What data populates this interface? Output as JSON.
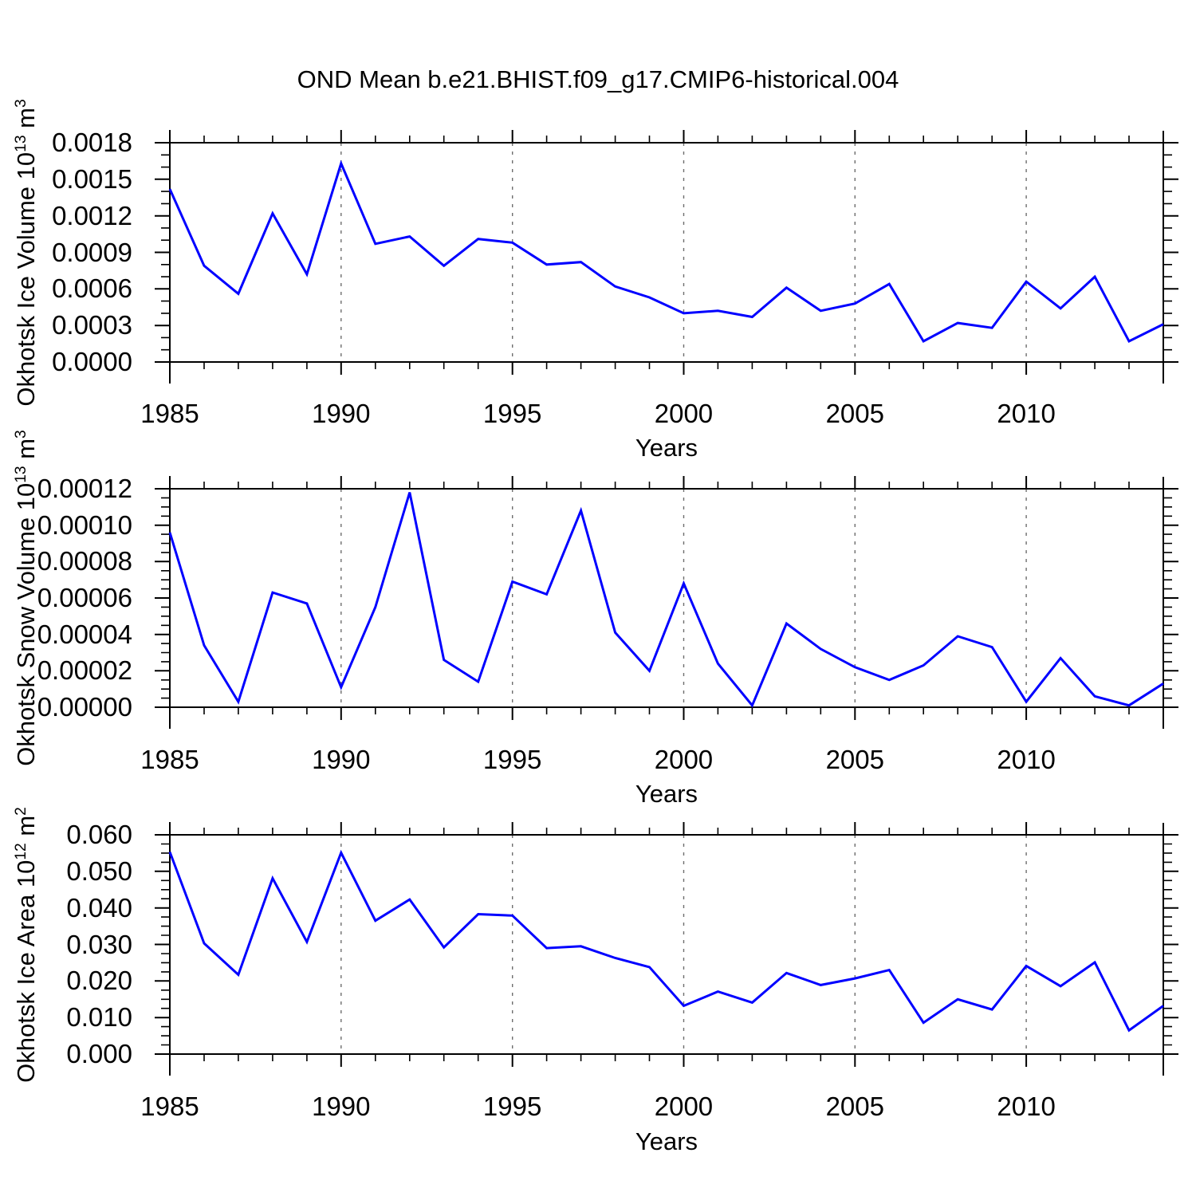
{
  "title": "OND Mean b.e21.BHIST.f09_g17.CMIP6-historical.004",
  "colors": {
    "line": "#0000ff",
    "grid": "#6e6e6e",
    "axis": "#000000",
    "text": "#000000",
    "background": "#ffffff"
  },
  "chart_data": [
    {
      "type": "line",
      "name": "okhotsk-ice-volume",
      "xlabel": "Years",
      "ylabel_segments": [
        {
          "text": "Okhotsk Ice Volume 10",
          "sup": false
        },
        {
          "text": "13",
          "sup": true
        },
        {
          "text": " m",
          "sup": false
        },
        {
          "text": "3",
          "sup": true
        }
      ],
      "xlim": [
        1985,
        2014
      ],
      "ylim": [
        0,
        0.0018
      ],
      "x": [
        1985,
        1986,
        1987,
        1988,
        1989,
        1990,
        1991,
        1992,
        1993,
        1994,
        1995,
        1996,
        1997,
        1998,
        1999,
        2000,
        2001,
        2002,
        2003,
        2004,
        2005,
        2006,
        2007,
        2008,
        2009,
        2010,
        2011,
        2012,
        2013,
        2014
      ],
      "values": [
        0.00142,
        0.00079,
        0.00056,
        0.00122,
        0.00072,
        0.00163,
        0.00097,
        0.00103,
        0.00079,
        0.00101,
        0.00098,
        0.0008,
        0.00082,
        0.00062,
        0.00053,
        0.0004,
        0.00042,
        0.00037,
        0.00061,
        0.00042,
        0.00048,
        0.00064,
        0.00017,
        0.00032,
        0.00028,
        0.00066,
        0.00044,
        0.0007,
        0.00017,
        0.00031
      ],
      "ytick_values": [
        0,
        0.0003,
        0.0006,
        0.0009,
        0.0012,
        0.0015,
        0.0018
      ],
      "ytick_labels": [
        "0.0000",
        "0.0003",
        "0.0006",
        "0.0009",
        "0.0012",
        "0.0015",
        "0.0018"
      ],
      "y_minor_step": 0.0001,
      "xtick_major": [
        1985,
        1990,
        1995,
        2000,
        2005,
        2010
      ],
      "xtick_labels": [
        "1985",
        "1990",
        "1995",
        "2000",
        "2005",
        "2010"
      ],
      "x_minor_step": 1,
      "grid_years": [
        1990,
        1995,
        2000,
        2005,
        2010
      ],
      "grid_style": "dashed"
    },
    {
      "type": "line",
      "name": "okhotsk-snow-volume",
      "xlabel": "Years",
      "ylabel_segments": [
        {
          "text": "Okhotsk Snow Volume 10",
          "sup": false
        },
        {
          "text": "13",
          "sup": true
        },
        {
          "text": " m",
          "sup": false
        },
        {
          "text": "3",
          "sup": true
        }
      ],
      "xlim": [
        1985,
        2014
      ],
      "ylim": [
        0,
        0.00012
      ],
      "x": [
        1985,
        1986,
        1987,
        1988,
        1989,
        1990,
        1991,
        1992,
        1993,
        1994,
        1995,
        1996,
        1997,
        1998,
        1999,
        2000,
        2001,
        2002,
        2003,
        2004,
        2005,
        2006,
        2007,
        2008,
        2009,
        2010,
        2011,
        2012,
        2013,
        2014
      ],
      "values": [
        9.6e-05,
        3.4e-05,
        3e-06,
        6.3e-05,
        5.7e-05,
        1.1e-05,
        5.5e-05,
        0.000118,
        2.6e-05,
        1.4e-05,
        6.9e-05,
        6.2e-05,
        0.000108,
        4.1e-05,
        2e-05,
        6.8e-05,
        2.4e-05,
        1e-06,
        4.6e-05,
        3.2e-05,
        2.2e-05,
        1.5e-05,
        2.3e-05,
        3.9e-05,
        3.3e-05,
        3e-06,
        2.7e-05,
        6e-06,
        1e-06,
        1.3e-05
      ],
      "ytick_values": [
        0,
        2e-05,
        4e-05,
        6e-05,
        8e-05,
        0.0001,
        0.00012
      ],
      "ytick_labels": [
        "0.00000",
        "0.00002",
        "0.00004",
        "0.00006",
        "0.00008",
        "0.00010",
        "0.00012"
      ],
      "y_minor_step": 5e-06,
      "xtick_major": [
        1985,
        1990,
        1995,
        2000,
        2005,
        2010
      ],
      "xtick_labels": [
        "1985",
        "1990",
        "1995",
        "2000",
        "2005",
        "2010"
      ],
      "x_minor_step": 1,
      "grid_years": [
        1990,
        1995,
        2000,
        2005,
        2010
      ],
      "grid_style": "dashed"
    },
    {
      "type": "line",
      "name": "okhotsk-ice-area",
      "xlabel": "Years",
      "ylabel_segments": [
        {
          "text": "Okhotsk Ice Area 10",
          "sup": false
        },
        {
          "text": "12",
          "sup": true
        },
        {
          "text": " m",
          "sup": false
        },
        {
          "text": "2",
          "sup": true
        }
      ],
      "xlim": [
        1985,
        2014
      ],
      "ylim": [
        0,
        0.06
      ],
      "x": [
        1985,
        1986,
        1987,
        1988,
        1989,
        1990,
        1991,
        1992,
        1993,
        1994,
        1995,
        1996,
        1997,
        1998,
        1999,
        2000,
        2001,
        2002,
        2003,
        2004,
        2005,
        2006,
        2007,
        2008,
        2009,
        2010,
        2011,
        2012,
        2013,
        2014
      ],
      "values": [
        0.0553,
        0.0303,
        0.0217,
        0.0481,
        0.0307,
        0.0551,
        0.0365,
        0.0423,
        0.0292,
        0.0383,
        0.0379,
        0.029,
        0.0295,
        0.0263,
        0.0238,
        0.0132,
        0.0171,
        0.0141,
        0.0222,
        0.0189,
        0.0207,
        0.023,
        0.0086,
        0.015,
        0.0122,
        0.0241,
        0.0186,
        0.0251,
        0.0065,
        0.0132
      ],
      "ytick_values": [
        0,
        0.01,
        0.02,
        0.03,
        0.04,
        0.05,
        0.06
      ],
      "ytick_labels": [
        "0.000",
        "0.010",
        "0.020",
        "0.030",
        "0.040",
        "0.050",
        "0.060"
      ],
      "y_minor_step": 0.0025,
      "xtick_major": [
        1985,
        1990,
        1995,
        2000,
        2005,
        2010
      ],
      "xtick_labels": [
        "1985",
        "1990",
        "1995",
        "2000",
        "2005",
        "2010"
      ],
      "x_minor_step": 1,
      "grid_years": [
        1990,
        1995,
        2000,
        2005,
        2010
      ],
      "grid_style": "dashed"
    }
  ]
}
